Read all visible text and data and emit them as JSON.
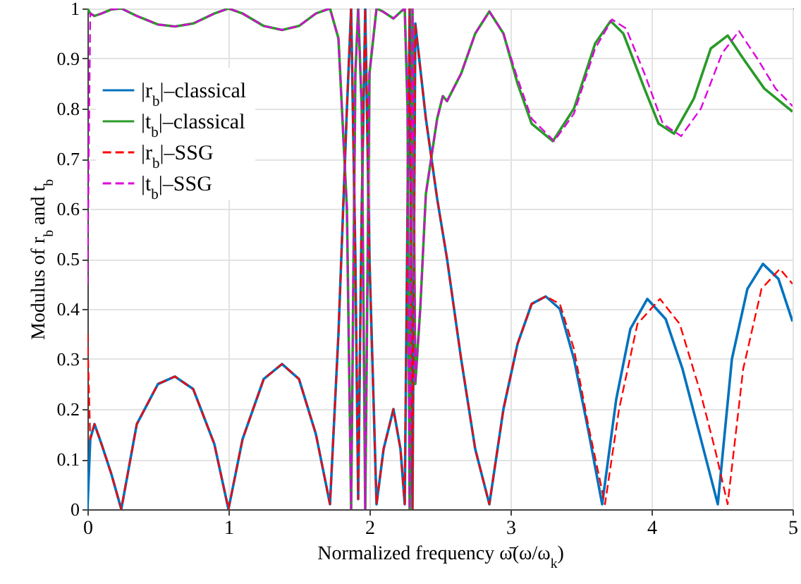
{
  "chart_data": {
    "type": "line",
    "xlabel": "Normalized frequency ω̄(ω/ω$_{k}$)",
    "ylabel": "Modulus of r$_{b}$ and t$_{b}$",
    "xlim": [
      0,
      5
    ],
    "xticks": [
      0,
      1,
      2,
      3,
      4,
      5
    ],
    "ylim": [
      0,
      1
    ],
    "yticks": [
      0,
      0.1,
      0.2,
      0.3,
      0.4,
      0.5,
      0.6,
      0.7,
      0.8,
      0.9,
      1
    ],
    "grid": true,
    "legend": "top left",
    "series": [
      {
        "name": "|r$_{b}$|–classical",
        "color": "#0072bd",
        "line_style": "solid",
        "x": [
          0,
          0.02,
          0.05,
          0.1,
          0.17,
          0.24,
          0.35,
          0.5,
          0.62,
          0.75,
          0.9,
          1.0,
          1.1,
          1.25,
          1.38,
          1.5,
          1.62,
          1.72,
          1.78,
          1.84,
          1.87,
          1.9,
          1.92,
          1.945,
          1.97,
          2.0,
          2.05,
          2.1,
          2.17,
          2.22,
          2.25,
          2.27,
          2.285,
          2.305,
          2.325,
          2.4,
          2.48,
          2.55,
          2.65,
          2.75,
          2.85,
          2.95,
          3.05,
          3.15,
          3.25,
          3.35,
          3.45,
          3.55,
          3.65,
          3.75,
          3.85,
          3.97,
          4.1,
          4.22,
          4.35,
          4.47,
          4.57,
          4.68,
          4.79,
          4.9,
          5.0
        ],
        "values": [
          0,
          0.14,
          0.17,
          0.13,
          0.07,
          0,
          0.17,
          0.25,
          0.265,
          0.24,
          0.13,
          0,
          0.14,
          0.26,
          0.29,
          0.26,
          0.15,
          0.01,
          0.35,
          0.8,
          1,
          0.5,
          0.02,
          0.6,
          1,
          0.5,
          0.01,
          0.12,
          0.2,
          0.12,
          0.01,
          0.6,
          1,
          0,
          0.97,
          0.78,
          0.62,
          0.5,
          0.3,
          0.12,
          0.01,
          0.2,
          0.33,
          0.41,
          0.425,
          0.4,
          0.3,
          0.16,
          0.01,
          0.22,
          0.36,
          0.42,
          0.38,
          0.28,
          0.14,
          0.01,
          0.3,
          0.44,
          0.49,
          0.46,
          0.375
        ]
      },
      {
        "name": "|t$_{b}$|–classical",
        "color": "#2a9a2a",
        "line_style": "solid",
        "x": [
          0,
          0.02,
          0.05,
          0.1,
          0.17,
          0.24,
          0.35,
          0.5,
          0.62,
          0.75,
          0.9,
          1.0,
          1.1,
          1.25,
          1.38,
          1.5,
          1.62,
          1.72,
          1.78,
          1.84,
          1.87,
          1.9,
          1.92,
          1.945,
          1.97,
          2.0,
          2.05,
          2.1,
          2.17,
          2.22,
          2.25,
          2.27,
          2.285,
          2.305,
          2.325,
          2.36,
          2.4,
          2.48,
          2.52,
          2.55,
          2.65,
          2.75,
          2.85,
          2.95,
          3.05,
          3.15,
          3.3,
          3.45,
          3.6,
          3.71,
          3.8,
          3.95,
          4.05,
          4.16,
          4.3,
          4.42,
          4.54,
          4.65,
          4.8,
          5.0
        ],
        "values": [
          1,
          0.99,
          0.985,
          0.99,
          0.998,
          1,
          0.985,
          0.968,
          0.964,
          0.97,
          0.99,
          1,
          0.99,
          0.965,
          0.957,
          0.965,
          0.99,
          1,
          0.94,
          0.6,
          0,
          0.87,
          1,
          0.8,
          0,
          0.87,
          1,
          0.993,
          0.98,
          0.993,
          1,
          0.8,
          0,
          1,
          0.25,
          0.4,
          0.63,
          0.78,
          0.825,
          0.815,
          0.87,
          0.95,
          0.994,
          0.95,
          0.85,
          0.77,
          0.735,
          0.8,
          0.93,
          0.975,
          0.95,
          0.84,
          0.77,
          0.75,
          0.82,
          0.92,
          0.946,
          0.9,
          0.84,
          0.794
        ]
      },
      {
        "name": "|r$_{b}$|–SSG",
        "color": "#ff0000",
        "line_style": "dashed",
        "x": [
          0,
          0.02,
          0.05,
          0.1,
          0.17,
          0.24,
          0.35,
          0.5,
          0.62,
          0.75,
          0.9,
          1.0,
          1.1,
          1.25,
          1.38,
          1.5,
          1.62,
          1.72,
          1.78,
          1.84,
          1.87,
          1.9,
          1.92,
          1.945,
          1.97,
          2.0,
          2.05,
          2.1,
          2.17,
          2.22,
          2.25,
          2.27,
          2.285,
          2.305,
          2.325,
          2.4,
          2.48,
          2.55,
          2.65,
          2.75,
          2.85,
          2.95,
          3.05,
          3.15,
          3.25,
          3.35,
          3.45,
          3.55,
          3.67,
          3.77,
          3.9,
          4.06,
          4.2,
          4.35,
          4.45,
          4.54,
          4.65,
          4.78,
          4.91,
          5.0
        ],
        "values": [
          0.35,
          0.14,
          0.17,
          0.13,
          0.07,
          0,
          0.17,
          0.25,
          0.265,
          0.24,
          0.13,
          0,
          0.14,
          0.26,
          0.29,
          0.26,
          0.15,
          0.01,
          0.35,
          0.8,
          1,
          0.5,
          0.02,
          0.6,
          1,
          0.5,
          0.01,
          0.12,
          0.2,
          0.12,
          0.01,
          0.6,
          1,
          0,
          0.97,
          0.78,
          0.62,
          0.5,
          0.3,
          0.12,
          0.01,
          0.2,
          0.33,
          0.41,
          0.425,
          0.41,
          0.32,
          0.17,
          0.01,
          0.2,
          0.37,
          0.42,
          0.37,
          0.23,
          0.12,
          0.01,
          0.28,
          0.44,
          0.48,
          0.45
        ]
      },
      {
        "name": "|t$_{b}$|–SSG",
        "color": "#dd00dd",
        "line_style": "dashed",
        "x": [
          0,
          0.02,
          0.05,
          0.1,
          0.17,
          0.24,
          0.35,
          0.5,
          0.62,
          0.75,
          0.9,
          1.0,
          1.1,
          1.25,
          1.38,
          1.5,
          1.62,
          1.72,
          1.78,
          1.84,
          1.87,
          1.9,
          1.92,
          1.945,
          1.97,
          2.0,
          2.05,
          2.1,
          2.17,
          2.22,
          2.25,
          2.27,
          2.285,
          2.305,
          2.325,
          2.36,
          2.4,
          2.48,
          2.52,
          2.55,
          2.65,
          2.75,
          2.85,
          2.95,
          3.05,
          3.15,
          3.31,
          3.45,
          3.6,
          3.72,
          3.82,
          3.95,
          4.08,
          4.21,
          4.35,
          4.5,
          4.62,
          4.75,
          4.88,
          5.0
        ],
        "values": [
          0.45,
          0.99,
          0.985,
          0.99,
          0.998,
          1,
          0.985,
          0.968,
          0.964,
          0.97,
          0.99,
          1,
          0.99,
          0.965,
          0.957,
          0.965,
          0.99,
          1,
          0.94,
          0.6,
          0,
          0.87,
          1,
          0.8,
          0,
          0.87,
          1,
          0.993,
          0.98,
          0.993,
          1,
          0.8,
          0,
          1,
          0.25,
          0.4,
          0.63,
          0.78,
          0.825,
          0.815,
          0.87,
          0.95,
          0.994,
          0.95,
          0.86,
          0.78,
          0.735,
          0.79,
          0.92,
          0.978,
          0.96,
          0.87,
          0.77,
          0.745,
          0.8,
          0.91,
          0.955,
          0.9,
          0.84,
          0.805
        ]
      }
    ]
  }
}
